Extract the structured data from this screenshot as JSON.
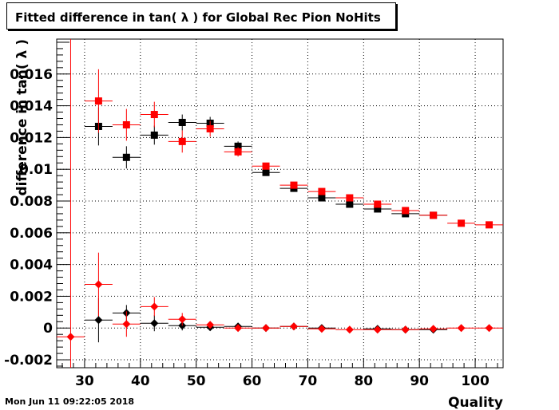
{
  "chart_data": {
    "type": "scatter",
    "title": "Fitted difference in tan( λ ) for Global Rec Pion NoHits",
    "xlabel": "Quality",
    "ylabel": "difference in tan( λ )",
    "xlim": [
      25,
      105
    ],
    "ylim": [
      -0.0025,
      0.0182
    ],
    "x_ticks": [
      30,
      40,
      50,
      60,
      70,
      80,
      90,
      100
    ],
    "x_tick_labels": [
      "30",
      "40",
      "50",
      "60",
      "70",
      "80",
      "90",
      "100"
    ],
    "y_ticks": [
      -0.002,
      0,
      0.002,
      0.004,
      0.006,
      0.008,
      0.01,
      0.012,
      0.014,
      0.016
    ],
    "y_tick_labels": [
      "-0.002",
      "0",
      "0.002",
      "0.004",
      "0.006",
      "0.008",
      "0.01",
      "0.012",
      "0.014",
      "0.016"
    ],
    "grid": true,
    "x_bin_half_width": 2.5,
    "series": [
      {
        "marker": "square",
        "color": "#000000",
        "points": [
          {
            "x": 32.5,
            "y": 0.0127,
            "err": 0.0012
          },
          {
            "x": 37.5,
            "y": 0.01075,
            "err": 0.0007
          },
          {
            "x": 42.5,
            "y": 0.01215,
            "err": 0.0006
          },
          {
            "x": 47.5,
            "y": 0.01295,
            "err": 0.0005
          },
          {
            "x": 52.5,
            "y": 0.0129,
            "err": 0.0004
          },
          {
            "x": 57.5,
            "y": 0.01145,
            "err": 0.0003
          },
          {
            "x": 62.5,
            "y": 0.0098,
            "err": 0.0002
          },
          {
            "x": 67.5,
            "y": 0.0088,
            "err": 0.0002
          },
          {
            "x": 72.5,
            "y": 0.0082,
            "err": 0.0001
          },
          {
            "x": 77.5,
            "y": 0.0078,
            "err": 0.0001
          },
          {
            "x": 82.5,
            "y": 0.0075,
            "err": 0.0001
          },
          {
            "x": 87.5,
            "y": 0.0072,
            "err": 0.0001
          },
          {
            "x": 92.5,
            "y": 0.0071,
            "err": 0.0001
          }
        ]
      },
      {
        "marker": "square",
        "color": "#ff0000",
        "points": [
          {
            "x": 32.5,
            "y": 0.0143,
            "err": 0.002
          },
          {
            "x": 37.5,
            "y": 0.0128,
            "err": 0.001
          },
          {
            "x": 42.5,
            "y": 0.01345,
            "err": 0.0008
          },
          {
            "x": 47.5,
            "y": 0.01175,
            "err": 0.0007
          },
          {
            "x": 52.5,
            "y": 0.01255,
            "err": 0.0005
          },
          {
            "x": 57.5,
            "y": 0.0111,
            "err": 0.0003
          },
          {
            "x": 62.5,
            "y": 0.0102,
            "err": 0.0002
          },
          {
            "x": 67.5,
            "y": 0.009,
            "err": 0.0002
          },
          {
            "x": 72.5,
            "y": 0.0086,
            "err": 0.0001
          },
          {
            "x": 77.5,
            "y": 0.0082,
            "err": 0.0001
          },
          {
            "x": 82.5,
            "y": 0.0078,
            "err": 0.0001
          },
          {
            "x": 87.5,
            "y": 0.0074,
            "err": 0.0001
          },
          {
            "x": 92.5,
            "y": 0.0071,
            "err": 0.0001
          },
          {
            "x": 97.5,
            "y": 0.0066,
            "err": 0.0001
          },
          {
            "x": 102.5,
            "y": 0.0065,
            "err": 0.0001
          }
        ]
      },
      {
        "marker": "diamond",
        "color": "#000000",
        "points": [
          {
            "x": 32.5,
            "y": 0.0005,
            "err": 0.0014
          },
          {
            "x": 37.5,
            "y": 0.00095,
            "err": 0.0005
          },
          {
            "x": 42.5,
            "y": 0.0003,
            "err": 0.0005
          },
          {
            "x": 47.5,
            "y": 0.00015,
            "err": 0.0003
          },
          {
            "x": 52.5,
            "y": 5e-05,
            "err": 0.0002
          },
          {
            "x": 57.5,
            "y": 0.0001,
            "err": 0.0001
          },
          {
            "x": 62.5,
            "y": 0.0,
            "err": 0.0001
          },
          {
            "x": 67.5,
            "y": 0.0001,
            "err": 0.0001
          },
          {
            "x": 72.5,
            "y": 0.0,
            "err": 0.0001
          },
          {
            "x": 82.5,
            "y": -5e-05,
            "err": 5e-05
          },
          {
            "x": 87.5,
            "y": -0.0001,
            "err": 5e-05
          },
          {
            "x": 92.5,
            "y": -0.0001,
            "err": 5e-05
          }
        ]
      },
      {
        "marker": "diamond",
        "color": "#ff0000",
        "points": [
          {
            "x": 27.5,
            "y": -0.00055,
            "err": 0.0195
          },
          {
            "x": 32.5,
            "y": 0.00275,
            "err": 0.002
          },
          {
            "x": 37.5,
            "y": 0.00025,
            "err": 0.0008
          },
          {
            "x": 42.5,
            "y": 0.00135,
            "err": 0.0006
          },
          {
            "x": 47.5,
            "y": 0.00055,
            "err": 0.0004
          },
          {
            "x": 52.5,
            "y": 0.0002,
            "err": 0.0002
          },
          {
            "x": 57.5,
            "y": 0.0,
            "err": 0.0001
          },
          {
            "x": 62.5,
            "y": 0.0,
            "err": 0.0001
          },
          {
            "x": 67.5,
            "y": 0.0001,
            "err": 0.0001
          },
          {
            "x": 72.5,
            "y": -5e-05,
            "err": 0.0001
          },
          {
            "x": 77.5,
            "y": -0.0001,
            "err": 5e-05
          },
          {
            "x": 82.5,
            "y": -0.0001,
            "err": 5e-05
          },
          {
            "x": 87.5,
            "y": -0.0001,
            "err": 5e-05
          },
          {
            "x": 92.5,
            "y": -5e-05,
            "err": 5e-05
          },
          {
            "x": 97.5,
            "y": 0.0,
            "err": 5e-05
          },
          {
            "x": 102.5,
            "y": 0.0,
            "err": 5e-05
          }
        ]
      }
    ]
  },
  "timestamp": "Mon Jun 11 09:22:05 2018"
}
